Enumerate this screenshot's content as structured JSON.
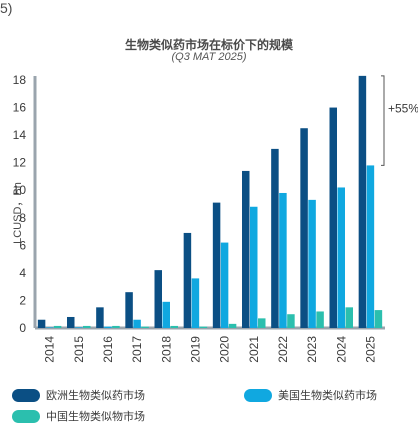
{
  "page_label": "5)",
  "colors": {
    "europe": "#0b4f84",
    "us": "#10a8e0",
    "china": "#2bbfae",
    "axis": "#9aa4ad",
    "text": "#3a3a3a"
  },
  "chart_data": {
    "type": "bar",
    "title": "生物类似药市场在标价下的规模",
    "subtitle": "(Q3 MAT 2025)",
    "ylabel": "LCUSD，Bn",
    "xlabel": "",
    "ylim": [
      0,
      18
    ],
    "yticks": [
      0,
      2,
      4,
      6,
      8,
      10,
      12,
      14,
      16,
      18
    ],
    "categories": [
      "2014",
      "2015",
      "2016",
      "2017",
      "2018",
      "2019",
      "2020",
      "2021",
      "2022",
      "2023",
      "2024",
      "2025"
    ],
    "series": [
      {
        "name": "欧洲生物类似药市场",
        "color": "#0b4f84",
        "values": [
          0.6,
          0.8,
          1.5,
          2.6,
          4.2,
          6.9,
          9.1,
          11.4,
          13.0,
          14.5,
          16.0,
          18.3
        ]
      },
      {
        "name": "美国生物类似药市场",
        "color": "#10a8e0",
        "values": [
          0.0,
          0.05,
          0.1,
          0.6,
          1.9,
          3.6,
          6.2,
          8.8,
          9.8,
          9.3,
          10.2,
          11.8
        ]
      },
      {
        "name": "中国生物类似物市场",
        "color": "#2bbfae",
        "values": [
          0.15,
          0.15,
          0.15,
          0.1,
          0.15,
          0.1,
          0.3,
          0.7,
          1.0,
          1.2,
          1.5,
          1.3
        ]
      }
    ],
    "annotation": {
      "text": "+55%"
    },
    "grid": false,
    "legend_position": "bottom"
  }
}
